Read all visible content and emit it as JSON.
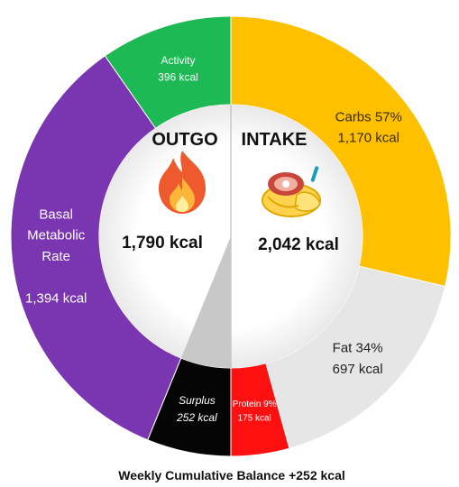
{
  "chart_data": {
    "type": "pie",
    "variant": "split-donut",
    "caption": "Weekly Cumulative Balance +252 kcal",
    "halves": [
      {
        "side": "left",
        "title": "OUTGO",
        "icon": "fire-icon",
        "total_label": "1,790 kcal",
        "total": 1790
      },
      {
        "side": "right",
        "title": "INTAKE",
        "icon": "food-plate-icon",
        "total_label": "2,042 kcal",
        "total": 2042
      }
    ],
    "slices": [
      {
        "half": "left",
        "lines": [
          "Activity",
          "396 kcal"
        ],
        "value": 396,
        "color": "#1db954",
        "text_color": "#ffffff"
      },
      {
        "half": "left",
        "lines": [
          "Basal",
          "Metabolic",
          "Rate",
          "",
          "1,394 kcal"
        ],
        "value": 1394,
        "color": "#7a35b0",
        "text_color": "#ffffff"
      },
      {
        "half": "left",
        "lines": [
          "Surplus",
          "252 kcal"
        ],
        "value": 252,
        "color": "#050505",
        "text_color": "#ffffff",
        "italic": true
      },
      {
        "half": "right",
        "lines": [
          "Carbs 57%",
          "1,170 kcal"
        ],
        "value": 1170,
        "color": "#ffc000",
        "text_color": "#3a2a00"
      },
      {
        "half": "right",
        "lines": [
          "Fat 34%",
          "697 kcal"
        ],
        "value": 697,
        "color": "#e6e6e6",
        "text_color": "#222222"
      },
      {
        "half": "right",
        "lines": [
          "Protein 9%",
          "175 kcal"
        ],
        "value": 175,
        "color": "#ff1010",
        "text_color": "#ffffff"
      }
    ],
    "surplus_wedge_color": "#c8c8c8"
  }
}
